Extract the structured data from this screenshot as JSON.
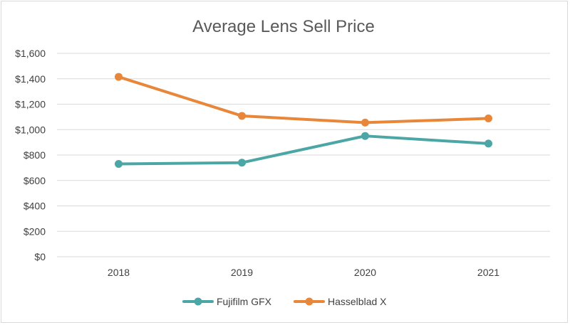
{
  "chart_data": {
    "type": "line",
    "title": "Average Lens Sell Price",
    "xlabel": "",
    "ylabel": "",
    "categories": [
      "2018",
      "2019",
      "2020",
      "2021"
    ],
    "ylim": [
      0,
      1600
    ],
    "yticks": [
      0,
      200,
      400,
      600,
      800,
      1000,
      1200,
      1400,
      1600
    ],
    "ytick_labels": [
      "$0",
      "$200",
      "$400",
      "$600",
      "$800",
      "$1,000",
      "$1,200",
      "$1,400",
      "$1,600"
    ],
    "grid": true,
    "legend_position": "bottom",
    "series": [
      {
        "name": "Fujifilm GFX",
        "color": "#4ca6a6",
        "values": [
          730,
          740,
          950,
          890
        ]
      },
      {
        "name": "Hasselblad X",
        "color": "#e8873a",
        "values": [
          1415,
          1108,
          1055,
          1088
        ]
      }
    ]
  }
}
